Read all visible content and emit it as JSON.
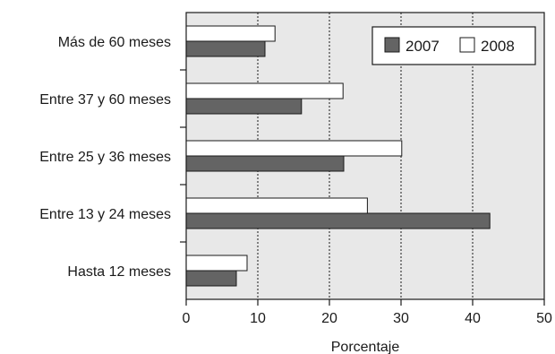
{
  "chart_data": {
    "type": "bar",
    "orientation": "horizontal",
    "title": "",
    "xlabel": "Porcentaje",
    "ylabel": "",
    "xlim": [
      0,
      50
    ],
    "x_ticks": [
      "0",
      "10",
      "20",
      "30",
      "40",
      "50"
    ],
    "grid": "vertical dotted",
    "legend_position": "top-right",
    "categories": [
      "Más de 60 meses",
      "Entre 37 y 60 meses",
      "Entre 25 y 36 meses",
      "Entre 13 y 24 meses",
      "Hasta 12 meses"
    ],
    "series": [
      {
        "name": "2007",
        "color": "#646464",
        "values": [
          11.0,
          16.1,
          22.0,
          42.4,
          7.0
        ]
      },
      {
        "name": "2008",
        "color": "#ffffff",
        "values": [
          12.4,
          21.9,
          30.1,
          25.3,
          8.5
        ]
      }
    ],
    "plot_background": "#e8e8e8"
  }
}
